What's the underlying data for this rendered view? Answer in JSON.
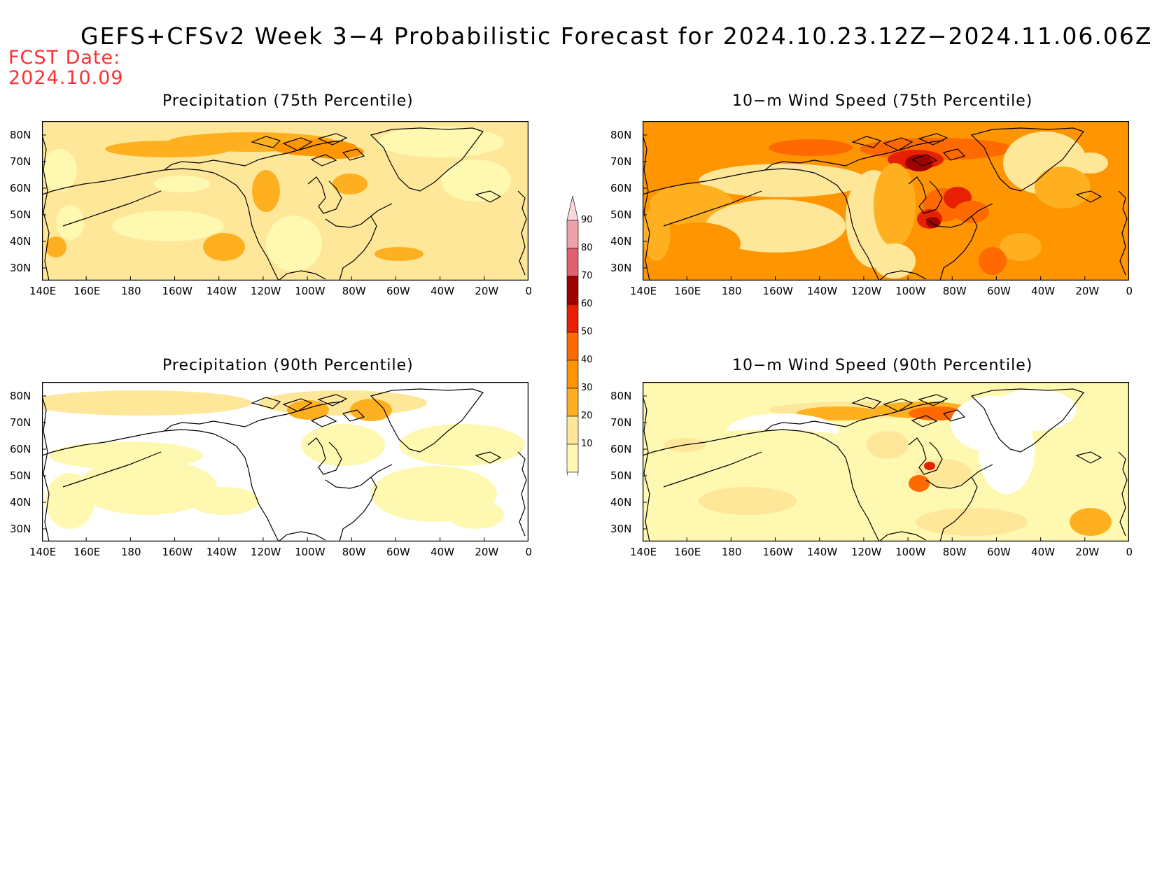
{
  "title": "GEFS+CFSv2 Week 3−4 Probabilistic Forecast for 2024.10.23.12Z−2024.11.06.06Z",
  "fcst_label": "FCST Date:",
  "fcst_date": "2024.10.09",
  "panels": [
    {
      "title": "Precipitation (75th Percentile)",
      "id": "precip-75"
    },
    {
      "title": "10−m Wind Speed (75th Percentile)",
      "id": "wind-75"
    },
    {
      "title": "Precipitation (90th Percentile)",
      "id": "precip-90"
    },
    {
      "title": "10−m Wind Speed (90th Percentile)",
      "id": "wind-90"
    }
  ],
  "lat_ticks": [
    "80N",
    "70N",
    "60N",
    "50N",
    "40N",
    "30N"
  ],
  "lon_ticks": [
    "140E",
    "160E",
    "180",
    "160W",
    "140W",
    "120W",
    "100W",
    "80W",
    "60W",
    "40W",
    "20W",
    "0"
  ],
  "colorbar": {
    "levels": [
      10,
      20,
      30,
      40,
      50,
      60,
      70,
      80,
      90
    ],
    "labels": [
      "10",
      "20",
      "30",
      "40",
      "50",
      "60",
      "70",
      "80",
      "90"
    ],
    "colors": [
      "#fff8b0",
      "#ffe79a",
      "#ffb020",
      "#ff9500",
      "#ff6a00",
      "#e62000",
      "#a00000",
      "#e06070",
      "#f0a0a8",
      "#f8d8dc"
    ]
  }
}
